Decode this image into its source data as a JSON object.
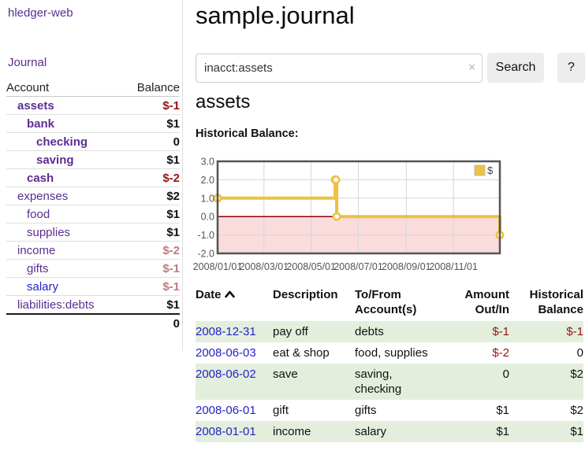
{
  "colors": {
    "accent_purple": "#5c2d91",
    "link_blue": "#2222cc",
    "negative_dark_red": "#941414",
    "negative_muted_red": "#bf7b7b",
    "row_stripe_green": "#e3efdc",
    "button_gray": "#ededed",
    "chart_line_gold": "#edc240",
    "chart_negative_region_pink": "#fbdcdc",
    "chart_zero_line_red": "#8b0000"
  },
  "sidebar": {
    "brand": "hledger-web",
    "nav": [
      {
        "label": "Journal"
      }
    ],
    "accounts": {
      "header": {
        "account": "Account",
        "balance": "Balance"
      },
      "rows": [
        {
          "name": "assets",
          "depth": 1,
          "bold": true,
          "link_style": "purple",
          "balance": "$-1",
          "balance_style": "neg-strong"
        },
        {
          "name": "bank",
          "depth": 2,
          "bold": true,
          "link_style": "purple",
          "balance": "$1",
          "balance_style": "pos"
        },
        {
          "name": "checking",
          "depth": 3,
          "bold": true,
          "link_style": "purple",
          "balance": "0",
          "balance_style": "pos"
        },
        {
          "name": "saving",
          "depth": 3,
          "bold": true,
          "link_style": "purple",
          "balance": "$1",
          "balance_style": "pos"
        },
        {
          "name": "cash",
          "depth": 2,
          "bold": true,
          "link_style": "purple",
          "balance": "$-2",
          "balance_style": "neg-strong"
        },
        {
          "name": "expenses",
          "depth": 1,
          "bold": false,
          "link_style": "purple",
          "balance": "$2",
          "balance_style": "pos"
        },
        {
          "name": "food",
          "depth": 2,
          "bold": false,
          "link_style": "purple",
          "balance": "$1",
          "balance_style": "pos"
        },
        {
          "name": "supplies",
          "depth": 2,
          "bold": false,
          "link_style": "purple",
          "balance": "$1",
          "balance_style": "pos"
        },
        {
          "name": "income",
          "depth": 1,
          "bold": false,
          "link_style": "purple",
          "balance": "$-2",
          "balance_style": "neg-soft"
        },
        {
          "name": "gifts",
          "depth": 2,
          "bold": false,
          "link_style": "purple",
          "balance": "$-1",
          "balance_style": "neg-soft"
        },
        {
          "name": "salary",
          "depth": 2,
          "bold": false,
          "link_style": "blue",
          "balance": "$-1",
          "balance_style": "neg-soft"
        },
        {
          "name": "liabilities:debts",
          "depth": 1,
          "bold": false,
          "link_style": "purple",
          "balance": "$1",
          "balance_style": "pos"
        }
      ],
      "total": "0"
    }
  },
  "main": {
    "title": "sample.journal",
    "search": {
      "value": "inacct:assets",
      "clear_icon": "×",
      "button": "Search",
      "help_button": "?"
    },
    "account_heading": "assets",
    "chart_heading": "Historical Balance:",
    "register": {
      "columns": [
        "Date",
        "Description",
        "To/From Account(s)",
        "Amount Out/In",
        "Historical Balance"
      ],
      "sort": {
        "column": "Date",
        "direction": "ascending"
      },
      "rows": [
        {
          "date": "2008-12-31",
          "description": "pay off",
          "accounts": "debts",
          "amount": "$-1",
          "amount_negative": true,
          "balance": "$-1",
          "balance_negative": true
        },
        {
          "date": "2008-06-03",
          "description": "eat & shop",
          "accounts": "food, supplies",
          "amount": "$-2",
          "amount_negative": true,
          "balance": "0",
          "balance_negative": false
        },
        {
          "date": "2008-06-02",
          "description": "save",
          "accounts": "saving, checking",
          "amount": "0",
          "amount_negative": false,
          "balance": "$2",
          "balance_negative": false
        },
        {
          "date": "2008-06-01",
          "description": "gift",
          "accounts": "gifts",
          "amount": "$1",
          "amount_negative": false,
          "balance": "$2",
          "balance_negative": false
        },
        {
          "date": "2008-01-01",
          "description": "income",
          "accounts": "salary",
          "amount": "$1",
          "amount_negative": false,
          "balance": "$1",
          "balance_negative": false
        }
      ]
    }
  },
  "chart_data": {
    "type": "line",
    "style": "step",
    "title": "Historical Balance",
    "series": [
      {
        "name": "$",
        "points": [
          [
            "2008-01-01",
            1
          ],
          [
            "2008-06-01",
            2
          ],
          [
            "2008-06-02",
            2
          ],
          [
            "2008-06-03",
            0
          ],
          [
            "2008-12-31",
            -1
          ]
        ]
      }
    ],
    "x_range": [
      "2008-01-01",
      "2008-12-31"
    ],
    "ylim": [
      -2,
      3
    ],
    "y_ticks": [
      3,
      2,
      1,
      0,
      -1,
      -2
    ],
    "x_ticks": [
      {
        "date": "2008-01-01",
        "label": "2008/01/01"
      },
      {
        "date": "2008-03-01",
        "label": "2008/03/01"
      },
      {
        "date": "2008-05-01",
        "label": "2008/05/01"
      },
      {
        "date": "2008-07-01",
        "label": "2008/07/01"
      },
      {
        "date": "2008-09-01",
        "label": "2008/09/01"
      },
      {
        "date": "2008-11-01",
        "label": "2008/11/01"
      }
    ],
    "grid": true,
    "legend": {
      "position": "top-right",
      "label": "$"
    },
    "colors": {
      "line": "#edc240",
      "negative_region": "#fbdcdc",
      "zero_line": "#8b0000"
    }
  }
}
